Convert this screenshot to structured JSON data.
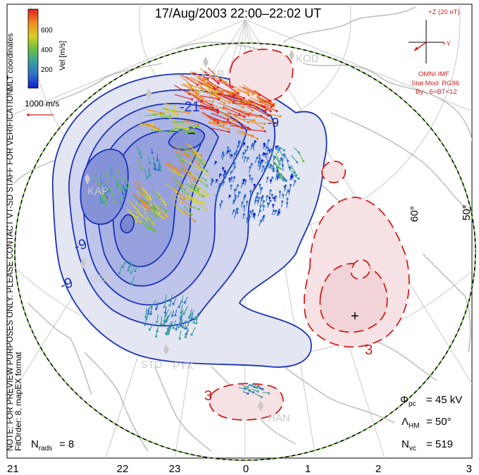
{
  "title": "17/Aug/2003 22:00–22:02 UT",
  "side_note": "NOTE: FOR PREVIEW PURPOSES ONLY. PLEASE CONTACT VT-SD STAFF FOR VERIFICATION.",
  "fit_note": "FitOrder: 8, mapEX format",
  "colorbar": {
    "title": "MLT coordinates",
    "label": "Vel [m/s]",
    "ticks": [
      "600",
      "400",
      "200"
    ],
    "min": 0,
    "max": 700,
    "colors": [
      "#1020d0",
      "#2f6fc8",
      "#3ca0a0",
      "#6cc040",
      "#d8d020",
      "#f08a20",
      "#e02020"
    ]
  },
  "scale": {
    "label": "1000 m/s",
    "color": "#d02020"
  },
  "imf": {
    "axis_z": "+Z (20 nT)",
    "axis_y": "+Y",
    "source": "OMNI IMF",
    "model": "Stat Mod: RG96",
    "condition": "By-, 6<BT<12",
    "color": "#d02020"
  },
  "stations": [
    "PGR",
    "KOD",
    "KAP",
    "GBR",
    "STO",
    "PYK",
    "HAN"
  ],
  "latitude_labels": [
    "60°",
    "50°"
  ],
  "contour_labels": {
    "negative": [
      "-21",
      "-9",
      "-9"
    ],
    "positive": [
      "3",
      "3"
    ],
    "min_marker": "−",
    "max_marker": "+"
  },
  "stats": {
    "phi_pc": "= 45 kV",
    "lambda_hm": "= 50°",
    "n_vc": "= 519",
    "n_rads": "= 8"
  },
  "chart_data": {
    "type": "polar convection map",
    "coordinates": "MLT",
    "mlt_ticks": [
      "21",
      "22",
      "23",
      "0",
      "1",
      "2",
      "3"
    ],
    "latitude_circles": [
      60,
      50
    ],
    "cross_polar_cap_potential_kV": 45,
    "heppner_maynard_boundary_deg": 50,
    "n_vectors": 519,
    "n_radars": 8,
    "velocity_scale_m_s": [
      0,
      700
    ],
    "contour_step_kV": 6
  }
}
